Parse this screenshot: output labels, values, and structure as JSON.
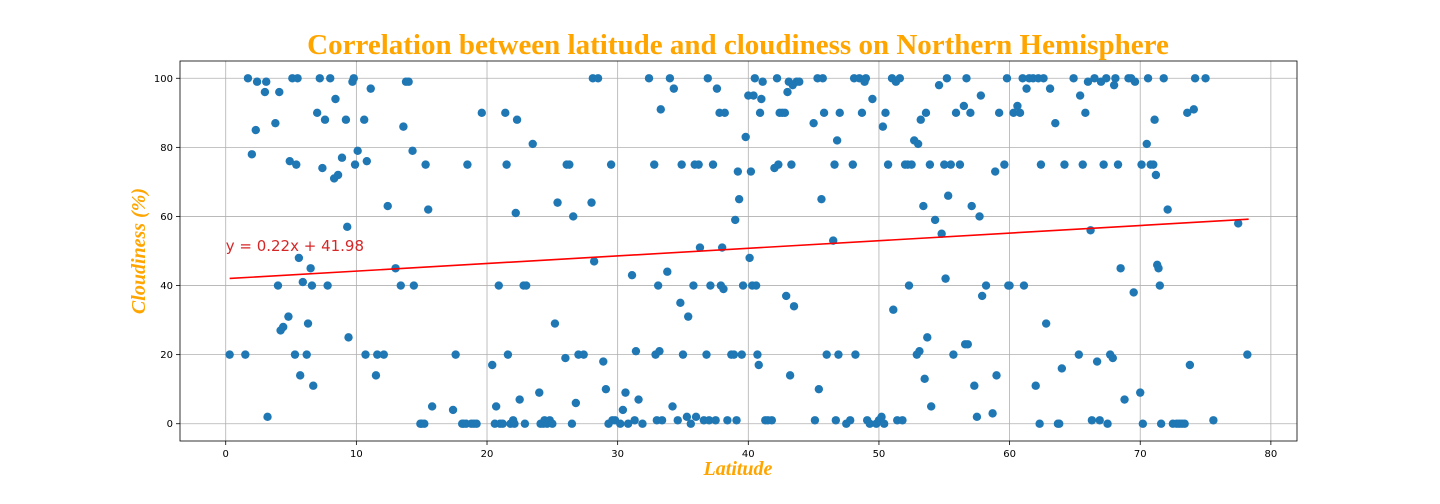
{
  "chart_data": {
    "type": "scatter",
    "title": "Correlation between latitude and cloudiness on Northern Hemisphere",
    "xlabel": "Latitude",
    "ylabel": "Cloudiness (%)",
    "xlim": [
      -3.5,
      82
    ],
    "ylim": [
      -5,
      105
    ],
    "xticks": [
      0,
      10,
      20,
      30,
      40,
      50,
      60,
      70,
      80
    ],
    "yticks": [
      0,
      20,
      40,
      60,
      80,
      100
    ],
    "grid": true,
    "colors": {
      "points": "#1f77b4",
      "regression": "#ff0000",
      "annotation": "#d62728",
      "title": "#FFA500"
    },
    "regression": {
      "slope": 0.22,
      "intercept": 41.98,
      "x_range": [
        0.3,
        78.3
      ],
      "equation": "y = 0.22x + 41.98",
      "annotation_position": [
        0,
        50
      ]
    },
    "points": [
      [
        0.3,
        20
      ],
      [
        1.5,
        20
      ],
      [
        1.7,
        100
      ],
      [
        2.0,
        78
      ],
      [
        2.3,
        85
      ],
      [
        2.4,
        99
      ],
      [
        3.0,
        96
      ],
      [
        3.1,
        99
      ],
      [
        3.2,
        2
      ],
      [
        3.8,
        87
      ],
      [
        4.0,
        40
      ],
      [
        4.1,
        96
      ],
      [
        4.2,
        27
      ],
      [
        4.4,
        28
      ],
      [
        4.8,
        31
      ],
      [
        4.9,
        76
      ],
      [
        5.1,
        100
      ],
      [
        5.3,
        20
      ],
      [
        5.4,
        75
      ],
      [
        5.5,
        100
      ],
      [
        5.6,
        48
      ],
      [
        5.7,
        14
      ],
      [
        5.9,
        41
      ],
      [
        6.2,
        20
      ],
      [
        6.3,
        29
      ],
      [
        6.5,
        45
      ],
      [
        6.6,
        40
      ],
      [
        6.7,
        11
      ],
      [
        7.0,
        90
      ],
      [
        7.2,
        100
      ],
      [
        7.4,
        74
      ],
      [
        7.6,
        88
      ],
      [
        7.8,
        40
      ],
      [
        8.0,
        100
      ],
      [
        8.3,
        71
      ],
      [
        8.4,
        94
      ],
      [
        8.6,
        72
      ],
      [
        8.9,
        77
      ],
      [
        9.2,
        88
      ],
      [
        9.3,
        57
      ],
      [
        9.4,
        25
      ],
      [
        9.7,
        99
      ],
      [
        9.8,
        100
      ],
      [
        9.9,
        75
      ],
      [
        10.1,
        79
      ],
      [
        10.6,
        88
      ],
      [
        10.7,
        20
      ],
      [
        10.8,
        76
      ],
      [
        11.1,
        97
      ],
      [
        11.5,
        14
      ],
      [
        11.6,
        20
      ],
      [
        12.1,
        20
      ],
      [
        12.4,
        63
      ],
      [
        13.0,
        45
      ],
      [
        13.4,
        40
      ],
      [
        13.6,
        86
      ],
      [
        13.8,
        99
      ],
      [
        14.0,
        99
      ],
      [
        14.3,
        79
      ],
      [
        14.4,
        40
      ],
      [
        14.9,
        0
      ],
      [
        15.0,
        0
      ],
      [
        15.2,
        0
      ],
      [
        15.3,
        75
      ],
      [
        15.5,
        62
      ],
      [
        15.8,
        5
      ],
      [
        17.4,
        4
      ],
      [
        17.6,
        20
      ],
      [
        18.1,
        0
      ],
      [
        18.2,
        0
      ],
      [
        18.4,
        0
      ],
      [
        18.5,
        75
      ],
      [
        18.8,
        0
      ],
      [
        19.0,
        0
      ],
      [
        19.2,
        0
      ],
      [
        19.6,
        90
      ],
      [
        20.4,
        17
      ],
      [
        20.6,
        0
      ],
      [
        20.7,
        5
      ],
      [
        20.9,
        40
      ],
      [
        21.0,
        0
      ],
      [
        21.2,
        0
      ],
      [
        21.4,
        90
      ],
      [
        21.5,
        75
      ],
      [
        21.6,
        20
      ],
      [
        21.8,
        0
      ],
      [
        22.0,
        1
      ],
      [
        22.1,
        0
      ],
      [
        22.2,
        61
      ],
      [
        22.3,
        88
      ],
      [
        22.5,
        7
      ],
      [
        22.8,
        40
      ],
      [
        22.9,
        0
      ],
      [
        23.0,
        40
      ],
      [
        23.5,
        81
      ],
      [
        24.0,
        9
      ],
      [
        24.1,
        0
      ],
      [
        24.3,
        0
      ],
      [
        24.4,
        1
      ],
      [
        24.6,
        0
      ],
      [
        24.8,
        1
      ],
      [
        25.0,
        0
      ],
      [
        25.2,
        29
      ],
      [
        25.4,
        64
      ],
      [
        26.0,
        19
      ],
      [
        26.1,
        75
      ],
      [
        26.3,
        75
      ],
      [
        26.5,
        0
      ],
      [
        26.6,
        60
      ],
      [
        26.8,
        6
      ],
      [
        27.0,
        20
      ],
      [
        27.4,
        20
      ],
      [
        28.0,
        64
      ],
      [
        28.1,
        100
      ],
      [
        28.2,
        47
      ],
      [
        28.5,
        100
      ],
      [
        28.9,
        18
      ],
      [
        29.1,
        10
      ],
      [
        29.3,
        0
      ],
      [
        29.5,
        75
      ],
      [
        29.6,
        1
      ],
      [
        29.8,
        1
      ],
      [
        30.2,
        0
      ],
      [
        30.4,
        4
      ],
      [
        30.6,
        9
      ],
      [
        30.8,
        0
      ],
      [
        31.1,
        43
      ],
      [
        31.3,
        1
      ],
      [
        31.4,
        21
      ],
      [
        31.6,
        7
      ],
      [
        31.9,
        0
      ],
      [
        32.4,
        100
      ],
      [
        32.8,
        75
      ],
      [
        32.9,
        20
      ],
      [
        33.0,
        1
      ],
      [
        33.1,
        40
      ],
      [
        33.2,
        21
      ],
      [
        33.3,
        91
      ],
      [
        33.4,
        1
      ],
      [
        33.8,
        44
      ],
      [
        34.0,
        100
      ],
      [
        34.2,
        5
      ],
      [
        34.3,
        97
      ],
      [
        34.6,
        1
      ],
      [
        34.8,
        35
      ],
      [
        34.9,
        75
      ],
      [
        35.0,
        20
      ],
      [
        35.3,
        2
      ],
      [
        35.4,
        31
      ],
      [
        35.6,
        0
      ],
      [
        35.8,
        40
      ],
      [
        35.9,
        75
      ],
      [
        36.0,
        2
      ],
      [
        36.2,
        75
      ],
      [
        36.3,
        51
      ],
      [
        36.6,
        1
      ],
      [
        36.8,
        20
      ],
      [
        36.9,
        100
      ],
      [
        37.0,
        1
      ],
      [
        37.1,
        40
      ],
      [
        37.3,
        75
      ],
      [
        37.5,
        1
      ],
      [
        37.6,
        97
      ],
      [
        37.8,
        90
      ],
      [
        37.9,
        40
      ],
      [
        38.0,
        51
      ],
      [
        38.1,
        39
      ],
      [
        38.2,
        90
      ],
      [
        38.4,
        1
      ],
      [
        38.7,
        20
      ],
      [
        38.9,
        20
      ],
      [
        39.0,
        59
      ],
      [
        39.1,
        1
      ],
      [
        39.2,
        73
      ],
      [
        39.3,
        65
      ],
      [
        39.5,
        20
      ],
      [
        39.6,
        40
      ],
      [
        39.8,
        83
      ],
      [
        40.0,
        95
      ],
      [
        40.1,
        48
      ],
      [
        40.2,
        73
      ],
      [
        40.3,
        40
      ],
      [
        40.4,
        95
      ],
      [
        40.5,
        100
      ],
      [
        40.6,
        40
      ],
      [
        40.7,
        20
      ],
      [
        40.8,
        17
      ],
      [
        40.9,
        90
      ],
      [
        41.0,
        94
      ],
      [
        41.1,
        99
      ],
      [
        41.3,
        1
      ],
      [
        41.5,
        1
      ],
      [
        41.8,
        1
      ],
      [
        42.0,
        74
      ],
      [
        42.2,
        100
      ],
      [
        42.3,
        75
      ],
      [
        42.4,
        90
      ],
      [
        42.6,
        90
      ],
      [
        42.8,
        90
      ],
      [
        42.9,
        37
      ],
      [
        43.0,
        96
      ],
      [
        43.1,
        99
      ],
      [
        43.2,
        14
      ],
      [
        43.3,
        75
      ],
      [
        43.4,
        98
      ],
      [
        43.5,
        34
      ],
      [
        43.7,
        99
      ],
      [
        43.9,
        99
      ],
      [
        45.0,
        87
      ],
      [
        45.1,
        1
      ],
      [
        45.3,
        100
      ],
      [
        45.4,
        10
      ],
      [
        45.6,
        65
      ],
      [
        45.7,
        100
      ],
      [
        45.8,
        90
      ],
      [
        46.0,
        20
      ],
      [
        46.5,
        53
      ],
      [
        46.6,
        75
      ],
      [
        46.7,
        1
      ],
      [
        46.8,
        82
      ],
      [
        46.9,
        20
      ],
      [
        47.0,
        90
      ],
      [
        47.5,
        0
      ],
      [
        47.8,
        1
      ],
      [
        48.0,
        75
      ],
      [
        48.1,
        100
      ],
      [
        48.2,
        20
      ],
      [
        48.5,
        100
      ],
      [
        48.7,
        90
      ],
      [
        48.9,
        99
      ],
      [
        49.0,
        100
      ],
      [
        49.1,
        1
      ],
      [
        49.3,
        0
      ],
      [
        49.5,
        94
      ],
      [
        49.8,
        0
      ],
      [
        50.0,
        1
      ],
      [
        50.2,
        2
      ],
      [
        50.3,
        86
      ],
      [
        50.4,
        0
      ],
      [
        50.5,
        90
      ],
      [
        50.7,
        75
      ],
      [
        51.0,
        100
      ],
      [
        51.1,
        33
      ],
      [
        51.3,
        99
      ],
      [
        51.4,
        1
      ],
      [
        51.6,
        100
      ],
      [
        51.8,
        1
      ],
      [
        52.0,
        75
      ],
      [
        52.2,
        75
      ],
      [
        52.3,
        40
      ],
      [
        52.5,
        75
      ],
      [
        52.7,
        82
      ],
      [
        52.9,
        20
      ],
      [
        53.0,
        81
      ],
      [
        53.1,
        21
      ],
      [
        53.2,
        88
      ],
      [
        53.4,
        63
      ],
      [
        53.5,
        13
      ],
      [
        53.6,
        90
      ],
      [
        53.7,
        25
      ],
      [
        53.9,
        75
      ],
      [
        54.0,
        5
      ],
      [
        54.3,
        59
      ],
      [
        54.6,
        98
      ],
      [
        54.8,
        55
      ],
      [
        55.0,
        75
      ],
      [
        55.1,
        42
      ],
      [
        55.2,
        100
      ],
      [
        55.3,
        66
      ],
      [
        55.5,
        75
      ],
      [
        55.7,
        20
      ],
      [
        55.9,
        90
      ],
      [
        56.2,
        75
      ],
      [
        56.5,
        92
      ],
      [
        56.6,
        23
      ],
      [
        56.7,
        100
      ],
      [
        56.8,
        23
      ],
      [
        57.0,
        90
      ],
      [
        57.1,
        63
      ],
      [
        57.3,
        11
      ],
      [
        57.5,
        2
      ],
      [
        57.7,
        60
      ],
      [
        57.8,
        95
      ],
      [
        57.9,
        37
      ],
      [
        58.2,
        40
      ],
      [
        58.7,
        3
      ],
      [
        58.9,
        73
      ],
      [
        59.0,
        14
      ],
      [
        59.2,
        90
      ],
      [
        59.6,
        75
      ],
      [
        59.8,
        100
      ],
      [
        59.9,
        40
      ],
      [
        60.0,
        40
      ],
      [
        60.3,
        90
      ],
      [
        60.6,
        92
      ],
      [
        60.8,
        90
      ],
      [
        61.0,
        100
      ],
      [
        61.1,
        40
      ],
      [
        61.3,
        97
      ],
      [
        61.5,
        100
      ],
      [
        61.8,
        100
      ],
      [
        62.0,
        11
      ],
      [
        62.2,
        100
      ],
      [
        62.3,
        0
      ],
      [
        62.4,
        75
      ],
      [
        62.6,
        100
      ],
      [
        62.8,
        29
      ],
      [
        63.1,
        97
      ],
      [
        63.5,
        87
      ],
      [
        63.7,
        0
      ],
      [
        63.8,
        0
      ],
      [
        64.0,
        16
      ],
      [
        64.2,
        75
      ],
      [
        64.9,
        100
      ],
      [
        65.3,
        20
      ],
      [
        65.4,
        95
      ],
      [
        65.6,
        75
      ],
      [
        65.8,
        90
      ],
      [
        66.0,
        99
      ],
      [
        66.2,
        56
      ],
      [
        66.3,
        1
      ],
      [
        66.5,
        100
      ],
      [
        66.7,
        18
      ],
      [
        66.9,
        1
      ],
      [
        67.0,
        99
      ],
      [
        67.2,
        75
      ],
      [
        67.4,
        100
      ],
      [
        67.5,
        0
      ],
      [
        67.7,
        20
      ],
      [
        67.9,
        19
      ],
      [
        68.0,
        98
      ],
      [
        68.1,
        100
      ],
      [
        68.3,
        75
      ],
      [
        68.5,
        45
      ],
      [
        68.8,
        7
      ],
      [
        69.1,
        100
      ],
      [
        69.3,
        100
      ],
      [
        69.5,
        38
      ],
      [
        69.6,
        99
      ],
      [
        70.0,
        9
      ],
      [
        70.1,
        75
      ],
      [
        70.2,
        0
      ],
      [
        70.5,
        81
      ],
      [
        70.6,
        100
      ],
      [
        70.8,
        75
      ],
      [
        71.0,
        75
      ],
      [
        71.1,
        88
      ],
      [
        71.2,
        72
      ],
      [
        71.3,
        46
      ],
      [
        71.4,
        45
      ],
      [
        71.5,
        40
      ],
      [
        71.6,
        0
      ],
      [
        71.8,
        100
      ],
      [
        72.1,
        62
      ],
      [
        72.5,
        0
      ],
      [
        72.8,
        0
      ],
      [
        73.0,
        0
      ],
      [
        73.2,
        0
      ],
      [
        73.4,
        0
      ],
      [
        73.6,
        90
      ],
      [
        73.8,
        17
      ],
      [
        74.1,
        91
      ],
      [
        74.2,
        100
      ],
      [
        75.0,
        100
      ],
      [
        75.6,
        1
      ],
      [
        77.5,
        58
      ],
      [
        78.2,
        20
      ]
    ]
  }
}
